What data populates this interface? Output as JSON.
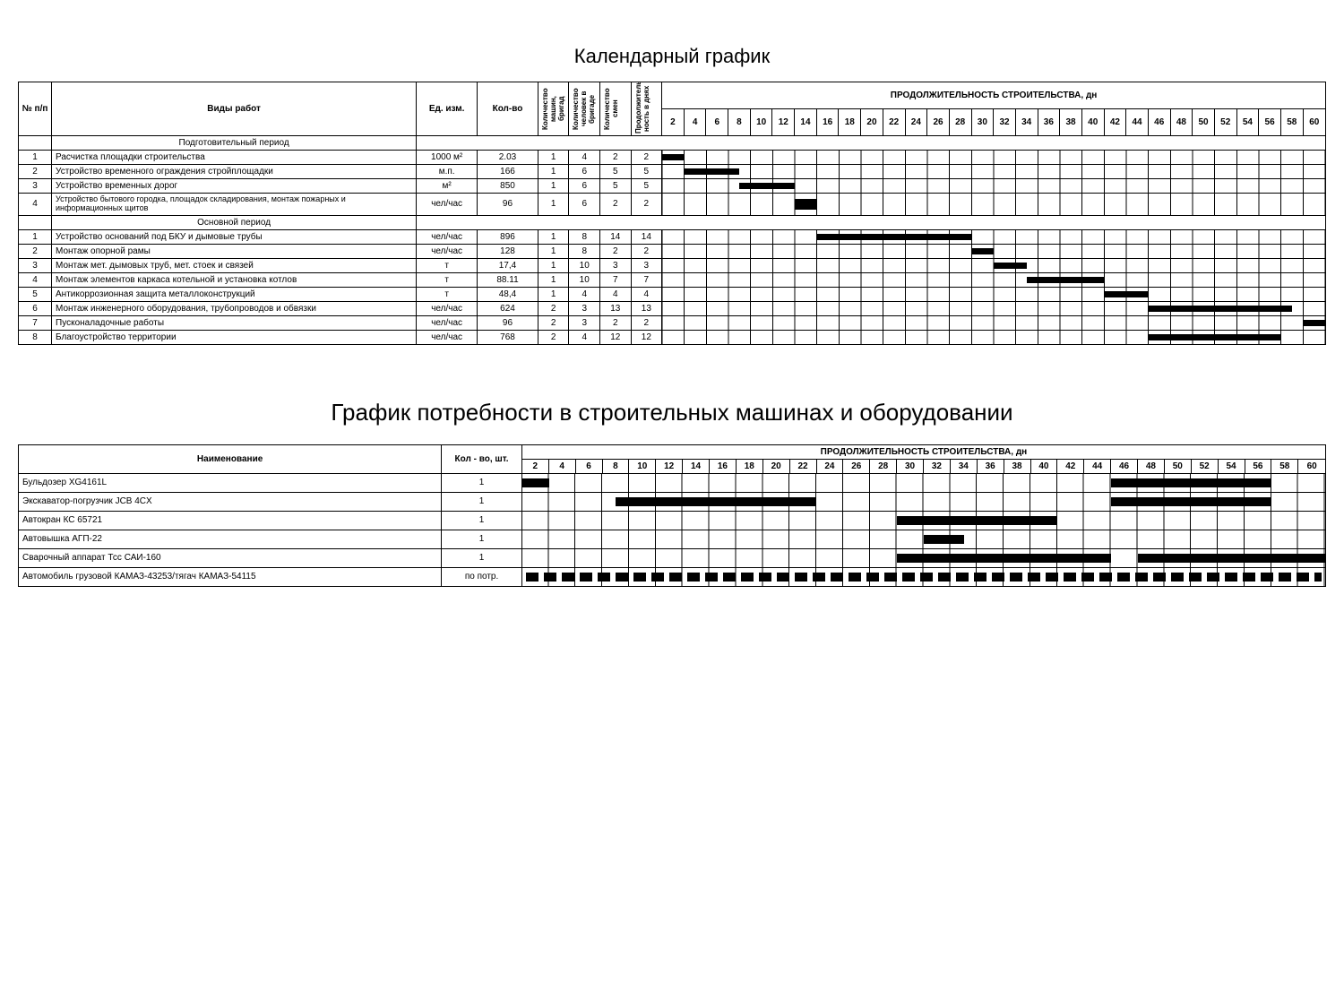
{
  "title1": "Календарный график",
  "title2": "График потребности в строительных машинах и оборудовании",
  "t1": {
    "headers": {
      "num": "№ п/п",
      "work": "Виды работ",
      "unit": "Ед. изм.",
      "qty": "Кол-во",
      "machines": "Количество машин, бригад",
      "workers": "Количество человек в бригаде",
      "shifts": "Количество смен",
      "duration": "Продолжитель-ность в днях",
      "timeline": "ПРОДОЛЖИТЕЛЬНОСТЬ СТРОИТЕЛЬСТВА, дн"
    },
    "days": [
      2,
      4,
      6,
      8,
      10,
      12,
      14,
      16,
      18,
      20,
      22,
      24,
      26,
      28,
      30,
      32,
      34,
      36,
      38,
      40,
      42,
      44,
      46,
      48,
      50,
      52,
      54,
      56,
      58,
      60
    ],
    "sections": [
      {
        "title": "Подготовительный период",
        "rows": [
          {
            "n": "1",
            "name": "Расчистка площадки строительства",
            "unit": "1000 м²",
            "qty": "2.03",
            "m": "1",
            "w": "4",
            "s": "2",
            "d": "2",
            "bar": [
              0,
              2
            ]
          },
          {
            "n": "2",
            "name": "Устройство временного ограждения стройплощадки",
            "unit": "м.п.",
            "qty": "166",
            "m": "1",
            "w": "6",
            "s": "5",
            "d": "5",
            "bar": [
              2,
              7
            ]
          },
          {
            "n": "3",
            "name": "Устройство временных дорог",
            "unit": "м²",
            "qty": "850",
            "m": "1",
            "w": "6",
            "s": "5",
            "d": "5",
            "bar": [
              7,
              12
            ]
          },
          {
            "n": "4",
            "name": "Устройство бытового городка, площадок складирования, монтаж пожарных и информационных щитов",
            "unit": "чел/час",
            "qty": "96",
            "m": "1",
            "w": "6",
            "s": "2",
            "d": "2",
            "bar": [
              12,
              14
            ]
          }
        ]
      },
      {
        "title": "Основной период",
        "rows": [
          {
            "n": "1",
            "name": "Устройство оснований под БКУ и дымовые трубы",
            "unit": "чел/час",
            "qty": "896",
            "m": "1",
            "w": "8",
            "s": "14",
            "d": "14",
            "bar": [
              14,
              28
            ]
          },
          {
            "n": "2",
            "name": "Монтаж опорной рамы",
            "unit": "чел/час",
            "qty": "128",
            "m": "1",
            "w": "8",
            "s": "2",
            "d": "2",
            "bar": [
              28,
              30
            ]
          },
          {
            "n": "3",
            "name": "Монтаж мет. дымовых труб, мет. стоек и связей",
            "unit": "т",
            "qty": "17,4",
            "m": "1",
            "w": "10",
            "s": "3",
            "d": "3",
            "bar": [
              30,
              33
            ]
          },
          {
            "n": "4",
            "name": "Монтаж элементов каркаса котельной и установка котлов",
            "unit": "т",
            "qty": "88.11",
            "m": "1",
            "w": "10",
            "s": "7",
            "d": "7",
            "bar": [
              33,
              40
            ]
          },
          {
            "n": "5",
            "name": "Антикоррозионная защита металлоконструкций",
            "unit": "т",
            "qty": "48,4",
            "m": "1",
            "w": "4",
            "s": "4",
            "d": "4",
            "bar": [
              40,
              44
            ]
          },
          {
            "n": "6",
            "name": "Монтаж инженерного оборудования, трубопроводов и обвязки",
            "unit": "чел/час",
            "qty": "624",
            "m": "2",
            "w": "3",
            "s": "13",
            "d": "13",
            "bar": [
              44,
              57
            ]
          },
          {
            "n": "7",
            "name": "Пусконаладочные работы",
            "unit": "чел/час",
            "qty": "96",
            "m": "2",
            "w": "3",
            "s": "2",
            "d": "2",
            "bar": [
              58,
              60
            ]
          },
          {
            "n": "8",
            "name": "Благоустройство территории",
            "unit": "чел/час",
            "qty": "768",
            "m": "2",
            "w": "4",
            "s": "12",
            "d": "12",
            "bar": [
              44,
              56
            ]
          }
        ]
      }
    ]
  },
  "t2": {
    "headers": {
      "name": "Наименование",
      "qty": "Кол - во, шт.",
      "timeline": "ПРОДОЛЖИТЕЛЬНОСТЬ СТРОИТЕЛЬСТВА, дн"
    },
    "days": [
      2,
      4,
      6,
      8,
      10,
      12,
      14,
      16,
      18,
      20,
      22,
      24,
      26,
      28,
      30,
      32,
      34,
      36,
      38,
      40,
      42,
      44,
      46,
      48,
      50,
      52,
      54,
      56,
      58,
      60
    ],
    "rows": [
      {
        "name": "Бульдозер XG4161L",
        "qty": "1",
        "bars": [
          [
            0,
            2
          ],
          [
            44,
            56
          ]
        ]
      },
      {
        "name": "Экскаватор-погрузчик JCB 4CX",
        "qty": "1",
        "bars": [
          [
            7,
            22
          ],
          [
            44,
            56
          ]
        ]
      },
      {
        "name": "Автокран КС 65721",
        "qty": "1",
        "bars": [
          [
            28,
            40
          ]
        ]
      },
      {
        "name": "Автовышка АГП-22",
        "qty": "1",
        "bars": [
          [
            30,
            33
          ]
        ]
      },
      {
        "name": "Сварочный аппарат Тсс САИ-160",
        "qty": "1",
        "bars": [
          [
            28,
            44
          ],
          [
            46,
            60
          ]
        ]
      },
      {
        "name": "Автомобиль грузовой КАМАЗ-43253/тягач КАМАЗ-54115",
        "qty": "по потр.",
        "dashed": true
      }
    ]
  },
  "style": {
    "bar_color": "#000000",
    "border_color": "#000000",
    "background": "#ffffff"
  }
}
